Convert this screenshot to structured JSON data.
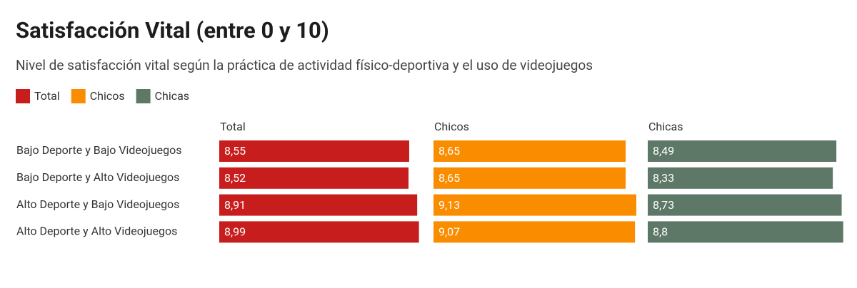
{
  "chart_data": {
    "type": "split-bar",
    "title": "Satisfacción Vital (entre 0 y 10)",
    "subtitle": "Nivel de satisfacción vital según la práctica de actividad físico-deportiva y el uso de videojuegos",
    "categories": [
      "Bajo Deporte y Bajo Videojuegos",
      "Bajo Deporte y Alto Videojuegos",
      "Alto Deporte y Bajo Videojuegos",
      "Alto Deporte y Alto Videojuegos"
    ],
    "series": [
      {
        "name": "Total",
        "color": "#c71e1d",
        "values": [
          8.55,
          8.52,
          8.91,
          8.99
        ],
        "value_labels": [
          "8,55",
          "8,52",
          "8,91",
          "8,99"
        ]
      },
      {
        "name": "Chicos",
        "color": "#fa8c00",
        "values": [
          8.65,
          8.65,
          9.13,
          9.07
        ],
        "value_labels": [
          "8,65",
          "8,65",
          "9,13",
          "9,07"
        ]
      },
      {
        "name": "Chicas",
        "color": "#5e7868",
        "values": [
          8.49,
          8.33,
          8.73,
          8.8
        ],
        "value_labels": [
          "8,49",
          "8,33",
          "8,73",
          "8,8"
        ]
      }
    ]
  }
}
